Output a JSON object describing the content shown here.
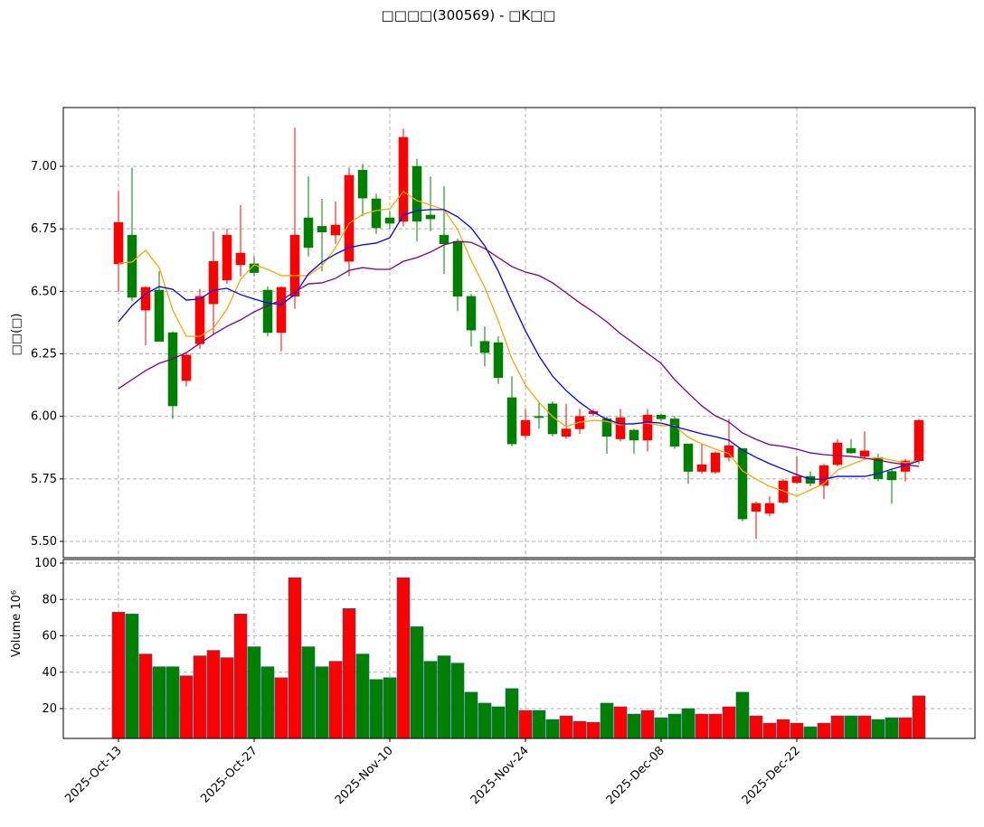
{
  "chart_data": {
    "type": "candlestick",
    "title": "□□□□(300569) - □K□□",
    "ylabel": "□□(□)",
    "categories": [
      "2025-Oct-13",
      null,
      null,
      null,
      null,
      null,
      null,
      null,
      null,
      null,
      "2025-Oct-27",
      null,
      null,
      null,
      null,
      null,
      null,
      null,
      null,
      null,
      "2025-Nov-10",
      null,
      null,
      null,
      null,
      null,
      null,
      null,
      null,
      null,
      "2025-Nov-24",
      null,
      null,
      null,
      null,
      null,
      null,
      null,
      null,
      null,
      "2025-Dec-08",
      null,
      null,
      null,
      null,
      null,
      null,
      null,
      null,
      null,
      "2025-Dec-22",
      null,
      null,
      null,
      null,
      null,
      null,
      null,
      null,
      null
    ],
    "open": [
      6.61,
      6.725,
      6.425,
      6.505,
      6.335,
      6.143,
      6.29,
      6.45,
      6.545,
      6.606,
      6.61,
      6.505,
      6.335,
      6.48,
      6.794,
      6.76,
      6.725,
      6.62,
      6.985,
      6.87,
      6.794,
      6.78,
      7.0,
      6.805,
      6.725,
      6.7,
      6.48,
      6.3,
      6.295,
      6.075,
      5.923,
      6.0,
      6.05,
      5.92,
      5.95,
      6.01,
      5.99,
      5.91,
      5.945,
      5.905,
      6.005,
      5.99,
      5.89,
      5.78,
      5.777,
      5.836,
      5.872,
      5.62,
      5.612,
      5.656,
      5.735,
      5.76,
      5.724,
      5.807,
      5.872,
      5.84,
      5.836,
      5.78,
      5.78,
      5.822
    ],
    "high": [
      6.9,
      6.995,
      6.52,
      6.58,
      6.34,
      6.25,
      6.51,
      6.74,
      6.75,
      6.845,
      6.64,
      6.52,
      6.52,
      7.155,
      6.96,
      6.87,
      6.86,
      6.995,
      7.01,
      6.89,
      6.82,
      7.15,
      7.03,
      6.96,
      6.92,
      6.71,
      6.49,
      6.36,
      6.32,
      6.16,
      6.03,
      6.06,
      6.06,
      6.05,
      6.03,
      6.03,
      6.0,
      6.03,
      5.95,
      6.03,
      6.01,
      6.0,
      5.89,
      5.89,
      5.86,
      5.99,
      5.87,
      5.66,
      5.68,
      5.75,
      5.84,
      5.78,
      5.81,
      5.91,
      5.91,
      5.94,
      5.85,
      5.79,
      5.83,
      5.99
    ],
    "low": [
      6.5,
      6.46,
      6.284,
      6.3,
      5.99,
      6.12,
      6.27,
      6.33,
      6.53,
      6.56,
      6.56,
      6.32,
      6.26,
      6.43,
      6.64,
      6.58,
      6.69,
      6.56,
      6.8,
      6.73,
      6.75,
      6.76,
      6.7,
      6.74,
      6.57,
      6.42,
      6.28,
      6.2,
      6.13,
      5.88,
      5.91,
      5.95,
      5.92,
      5.91,
      5.93,
      6.0,
      5.85,
      5.9,
      5.85,
      5.86,
      5.98,
      5.87,
      5.73,
      5.77,
      5.77,
      5.82,
      5.58,
      5.51,
      5.6,
      5.65,
      5.73,
      5.72,
      5.67,
      5.8,
      5.85,
      5.83,
      5.74,
      5.65,
      5.74,
      5.81
    ],
    "close": [
      6.776,
      6.476,
      6.516,
      6.3,
      6.042,
      6.245,
      6.48,
      6.62,
      6.725,
      6.653,
      6.575,
      6.335,
      6.516,
      6.725,
      6.675,
      6.737,
      6.765,
      6.964,
      6.873,
      6.754,
      6.772,
      7.116,
      6.78,
      6.79,
      6.69,
      6.48,
      6.345,
      6.255,
      6.155,
      5.89,
      5.984,
      5.995,
      5.93,
      5.95,
      6.0,
      6.02,
      5.92,
      5.995,
      5.905,
      6.005,
      5.99,
      5.88,
      5.78,
      5.807,
      5.854,
      5.883,
      5.59,
      5.652,
      5.652,
      5.742,
      5.76,
      5.732,
      5.803,
      5.894,
      5.854,
      5.862,
      5.75,
      5.746,
      5.822,
      5.984
    ],
    "up_color": "#ff0000",
    "down_color": "#008000",
    "moving_averages": [
      {
        "color": "#ffa500",
        "values": [
          6.613,
          6.617,
          6.664,
          6.595,
          6.425,
          6.32,
          6.32,
          6.353,
          6.429,
          6.548,
          6.606,
          6.588,
          6.563,
          6.563,
          6.563,
          6.602,
          6.675,
          6.772,
          6.808,
          6.823,
          6.83,
          6.899,
          6.863,
          6.845,
          6.827,
          6.747,
          6.624,
          6.516,
          6.382,
          6.23,
          6.125,
          6.056,
          5.999,
          5.959,
          5.977,
          5.984,
          5.98,
          5.966,
          5.973,
          5.973,
          5.963,
          5.963,
          5.916,
          5.89,
          5.869,
          5.851,
          5.782,
          5.749,
          5.72,
          5.702,
          5.681,
          5.706,
          5.731,
          5.786,
          5.807,
          5.829,
          5.836,
          5.825,
          5.815,
          5.822
        ]
      },
      {
        "color": "#0000ff",
        "values": [
          6.378,
          6.443,
          6.49,
          6.519,
          6.508,
          6.465,
          6.469,
          6.505,
          6.512,
          6.487,
          6.469,
          6.454,
          6.447,
          6.487,
          6.57,
          6.617,
          6.649,
          6.675,
          6.686,
          6.693,
          6.714,
          6.805,
          6.823,
          6.827,
          6.827,
          6.798,
          6.754,
          6.682,
          6.581,
          6.458,
          6.342,
          6.241,
          6.161,
          6.103,
          6.056,
          6.017,
          5.988,
          5.97,
          5.97,
          5.977,
          5.973,
          5.959,
          5.945,
          5.93,
          5.919,
          5.905,
          5.865,
          5.836,
          5.811,
          5.789,
          5.767,
          5.749,
          5.749,
          5.76,
          5.76,
          5.76,
          5.771,
          5.789,
          5.804,
          5.822
        ]
      },
      {
        "color": "#800080",
        "values": [
          6.111,
          6.147,
          6.183,
          6.212,
          6.23,
          6.255,
          6.292,
          6.328,
          6.36,
          6.386,
          6.418,
          6.443,
          6.465,
          6.498,
          6.53,
          6.534,
          6.552,
          6.584,
          6.595,
          6.588,
          6.588,
          6.62,
          6.635,
          6.657,
          6.686,
          6.7,
          6.696,
          6.671,
          6.635,
          6.599,
          6.577,
          6.563,
          6.534,
          6.494,
          6.454,
          6.418,
          6.378,
          6.331,
          6.292,
          6.252,
          6.212,
          6.147,
          6.093,
          6.042,
          6.002,
          5.977,
          5.934,
          5.908,
          5.887,
          5.88,
          5.869,
          5.854,
          5.847,
          5.843,
          5.84,
          5.833,
          5.825,
          5.815,
          5.807,
          5.8
        ]
      }
    ],
    "ylim": [
      5.435,
      7.235
    ],
    "yticks": [
      {
        "value": 5.5,
        "label": "5.50"
      },
      {
        "value": 5.75,
        "label": "5.75"
      },
      {
        "value": 6.0,
        "label": "6.00"
      },
      {
        "value": 6.25,
        "label": "6.25"
      },
      {
        "value": 6.5,
        "label": "6.50"
      },
      {
        "value": 6.75,
        "label": "6.75"
      },
      {
        "value": 7.0,
        "label": "7.00"
      }
    ],
    "grid": true,
    "volume": {
      "ylabel": "Volume  10⁶",
      "values": [
        73,
        72,
        50,
        43,
        43,
        38,
        49,
        52,
        48,
        72,
        54,
        43,
        37,
        92,
        54,
        43,
        46,
        75,
        50,
        36,
        37,
        92,
        65,
        46,
        49,
        45,
        29,
        23,
        21,
        31,
        19,
        19,
        14,
        16,
        13,
        12.5,
        23,
        21,
        17,
        19,
        15,
        17,
        20,
        17,
        17,
        21,
        29,
        16,
        12,
        14,
        12,
        10,
        12,
        16,
        16,
        16,
        14,
        15,
        15,
        27
      ],
      "ylim": [
        3.6,
        102
      ],
      "yticks": [
        20,
        40,
        60,
        80,
        100
      ]
    }
  }
}
